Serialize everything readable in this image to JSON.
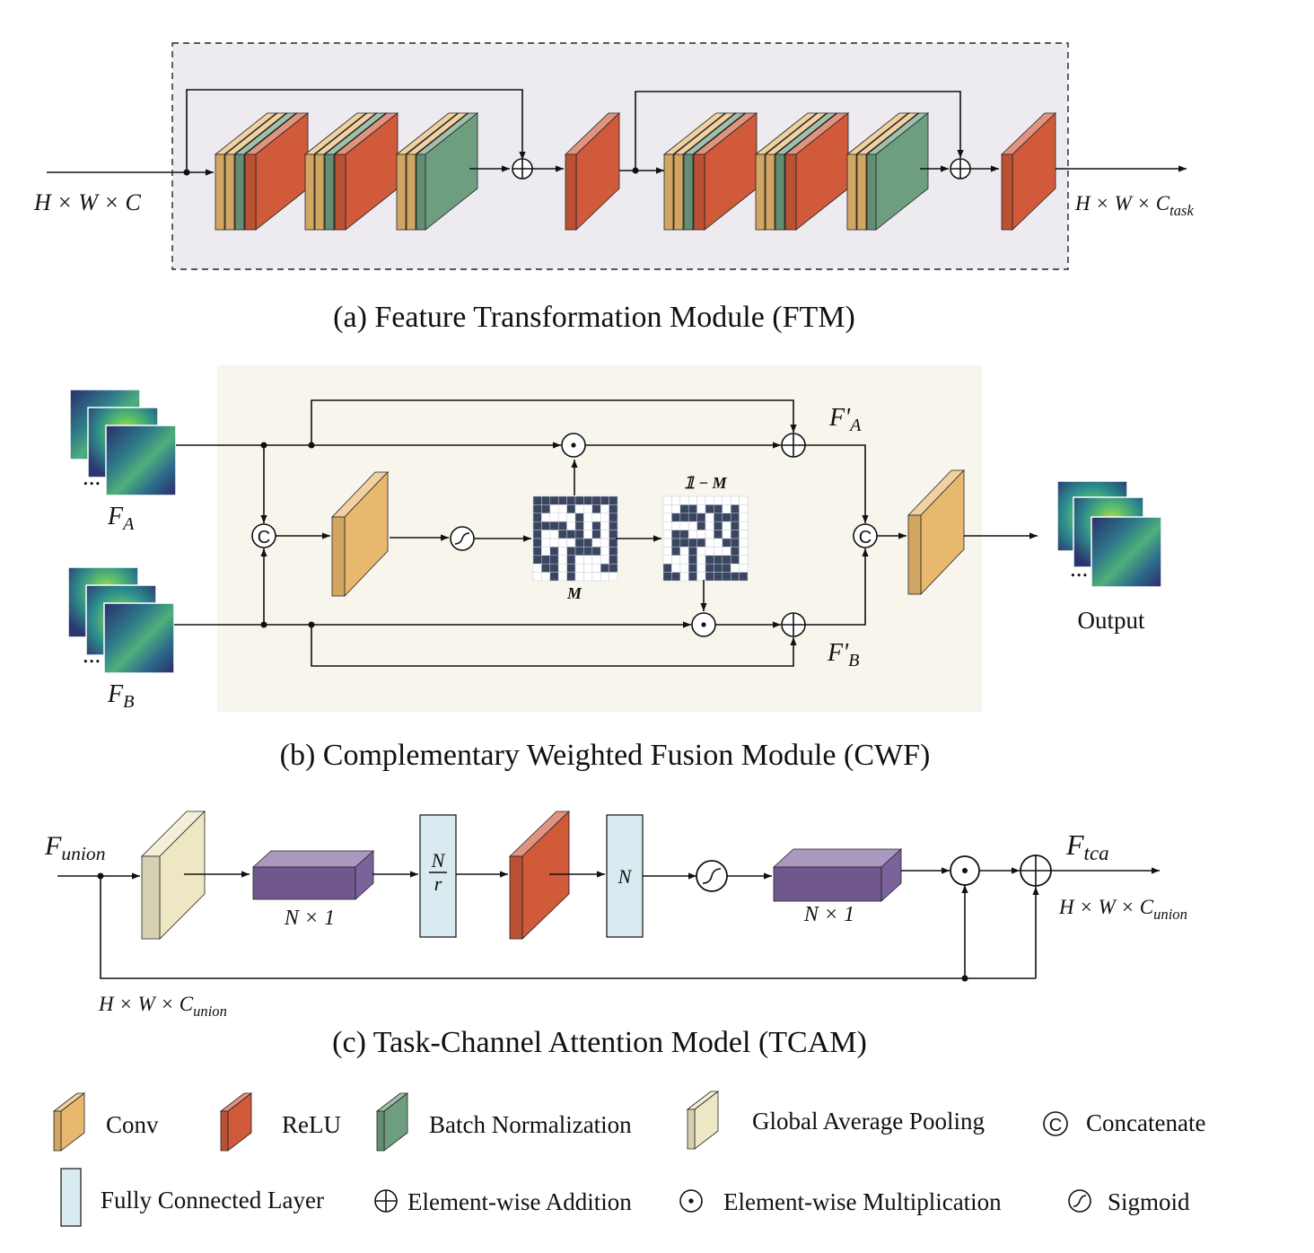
{
  "colors": {
    "conv": "#e8b86e",
    "relu": "#d05a3a",
    "batch_norm": "#6e9e80",
    "gap": "#ede7c4",
    "fc": "#d9eaf0",
    "nx1": "#7c629b",
    "ftm_bg": "#edeaf0",
    "cwf_bg": "#f7f5ec",
    "matrix_dark": "#3a4560"
  },
  "ftm": {
    "input_label": "H × W × C",
    "output_label": "H × W × C_task",
    "caption": "(a) Feature Transformation Module (FTM)"
  },
  "cwf": {
    "fa_label": "F_A",
    "fb_label": "F_B",
    "fa_prime": "F'_A",
    "fb_prime": "F'_B",
    "m_label": "M",
    "one_minus_m": "𝟙 − M",
    "output_label": "Output",
    "ellipsis": "...",
    "caption": "(b) Complementary Weighted Fusion Module (CWF)"
  },
  "tcam": {
    "input_label": "F_union",
    "output_label": "F_tca",
    "nx1_label": "N × 1",
    "fc1_num": "N",
    "fc1_den": "r",
    "fc2_label": "N",
    "bottom_dim": "H × W × C_union",
    "output_dim": "H × W × C_union",
    "caption": "(c) Task-Channel Attention Model (TCAM)"
  },
  "legend": {
    "conv": "Conv",
    "relu": "ReLU",
    "batch_norm": "Batch Normalization",
    "gap": "Global Average Pooling",
    "concat": "Concatenate",
    "fc": "Fully Connected Layer",
    "add": "Element-wise Addition",
    "mul": "Element-wise Multiplication",
    "sigmoid": "Sigmoid"
  }
}
